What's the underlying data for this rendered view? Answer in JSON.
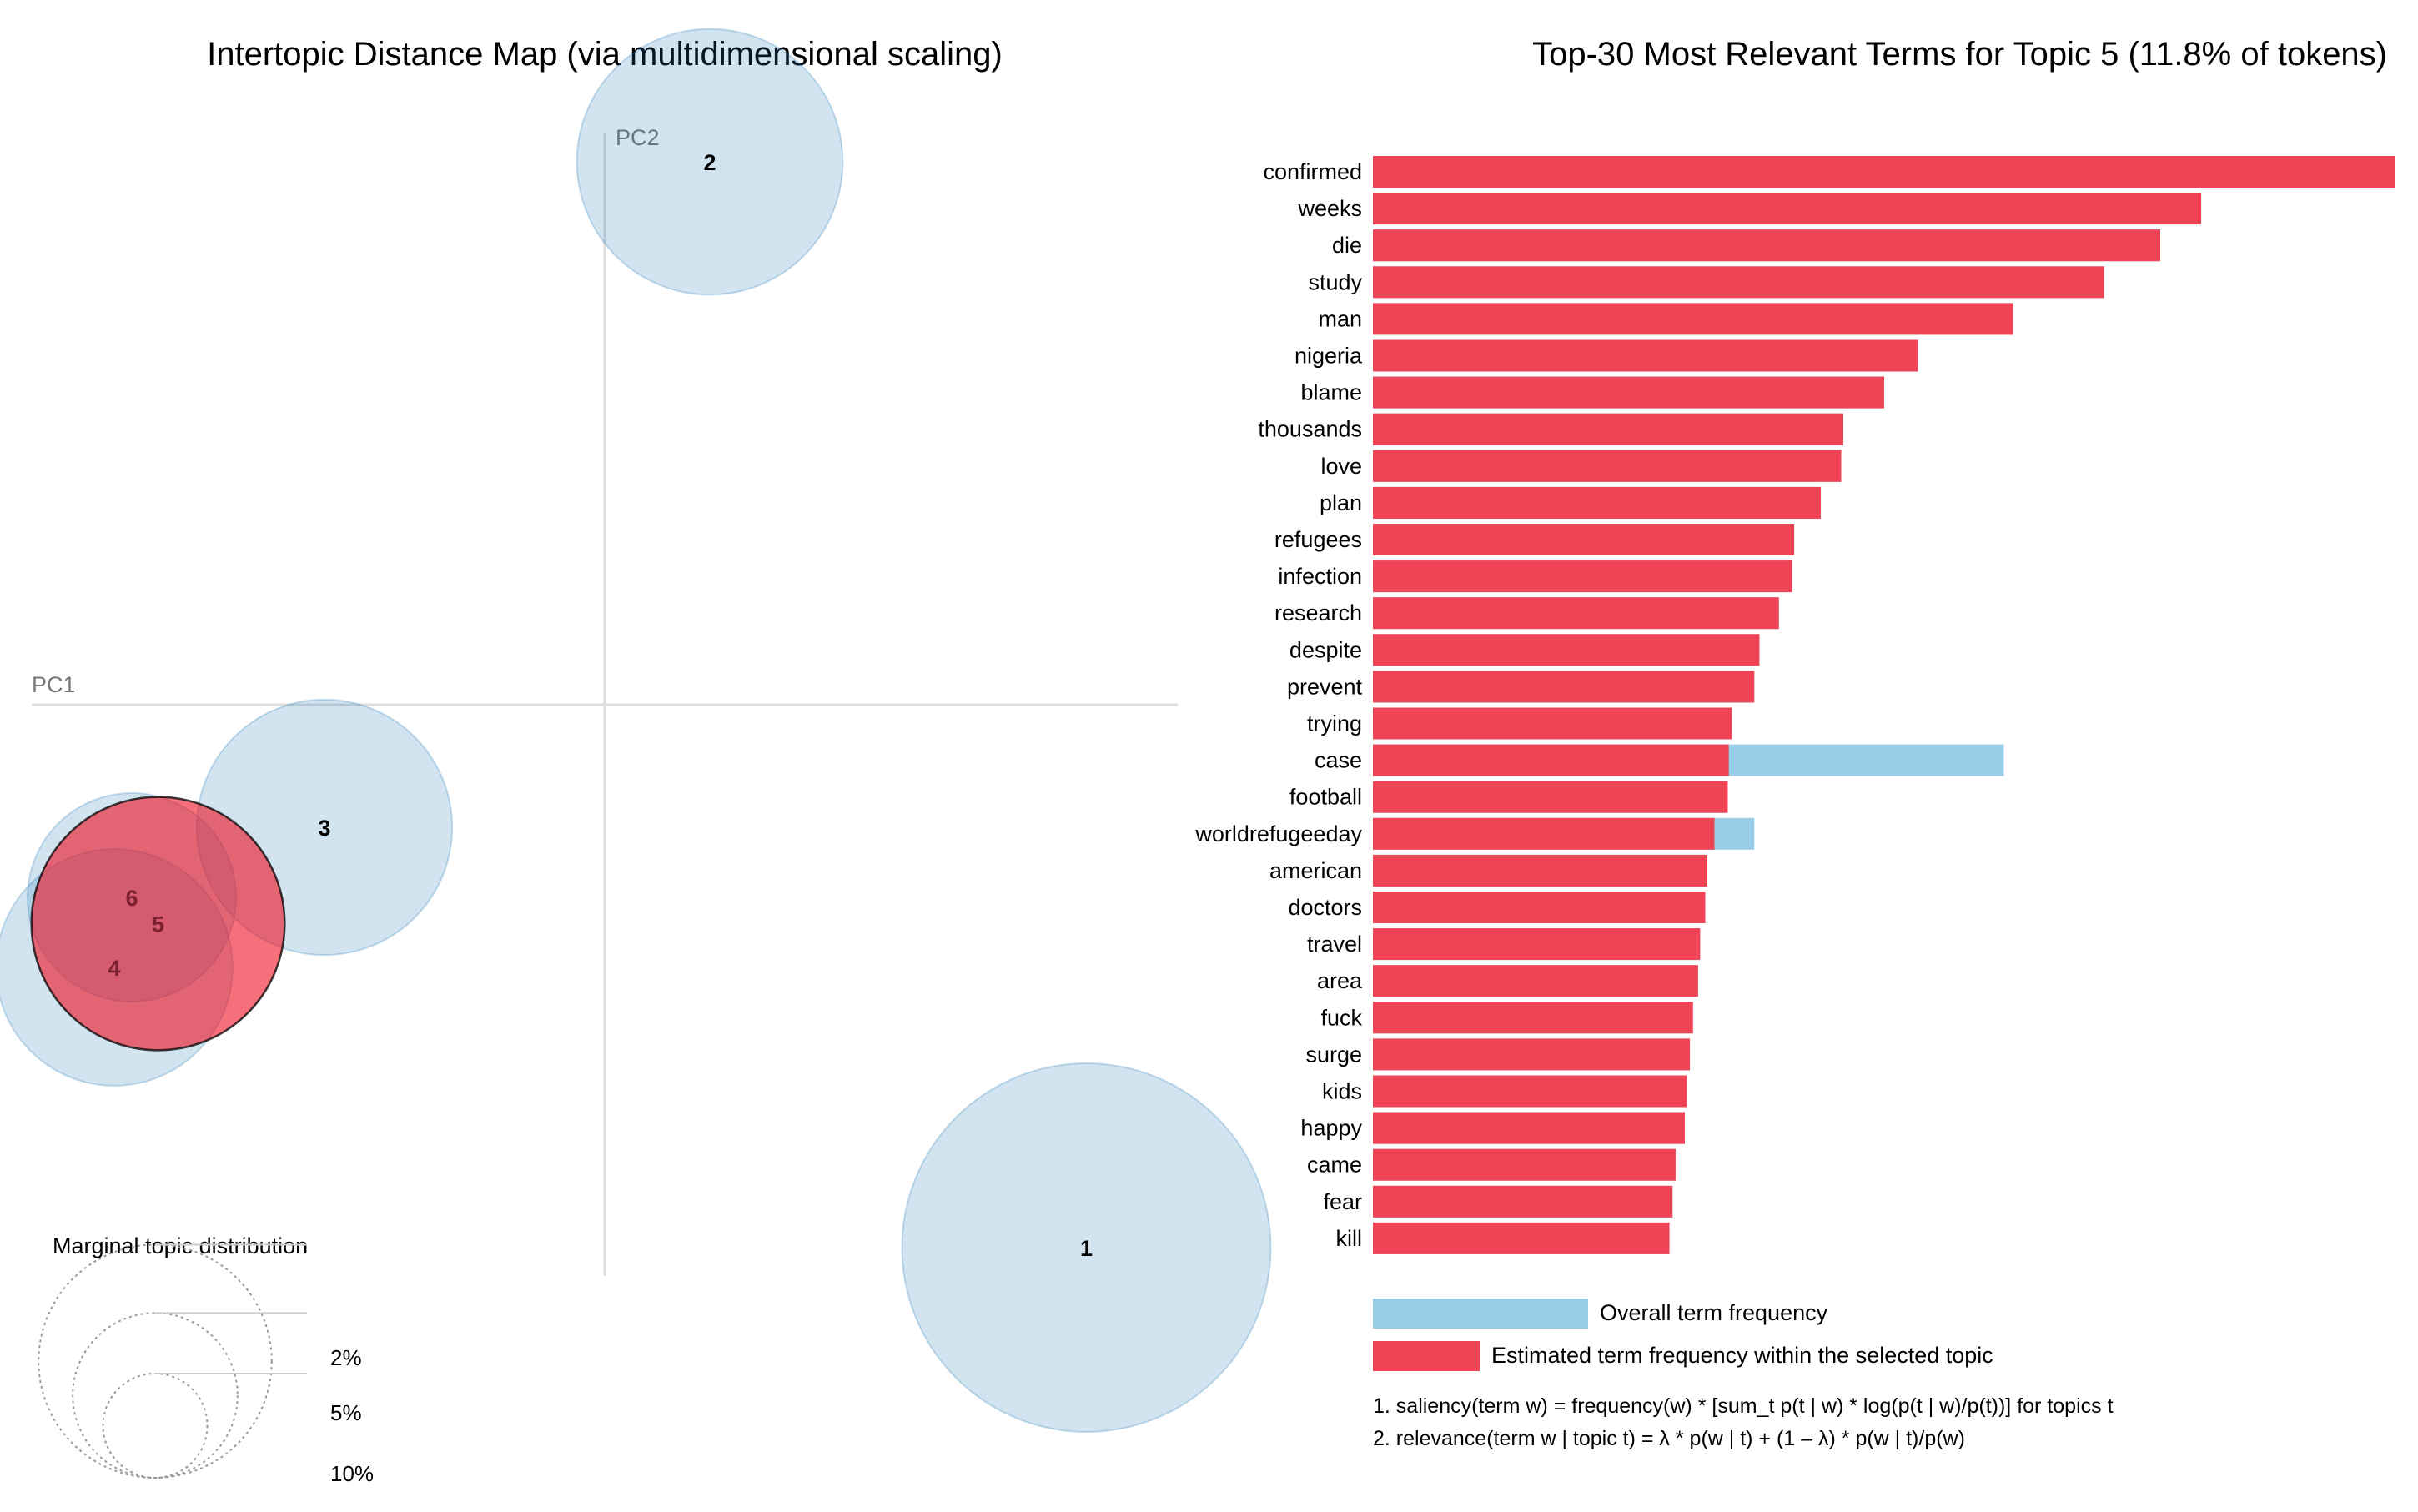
{
  "chart_data": [
    {
      "type": "scatter",
      "title": "Intertopic Distance Map (via multidimensional scaling)",
      "xlabel": "PC1",
      "ylabel": "PC2",
      "selected_topic": 5,
      "topics": [
        {
          "id": 1,
          "pc1": 0.55,
          "pc2": -0.62,
          "freq_pct": 25.0
        },
        {
          "id": 2,
          "pc1": 0.12,
          "pc2": 0.62,
          "freq_pct": 13.0
        },
        {
          "id": 3,
          "pc1": -0.32,
          "pc2": -0.14,
          "freq_pct": 12.0
        },
        {
          "id": 4,
          "pc1": -0.56,
          "pc2": -0.3,
          "freq_pct": 10.3
        },
        {
          "id": 5,
          "pc1": -0.51,
          "pc2": -0.25,
          "freq_pct": 11.8
        },
        {
          "id": 6,
          "pc1": -0.54,
          "pc2": -0.22,
          "freq_pct": 8.0
        }
      ],
      "marginal_legend": {
        "title": "Marginal topic distribution",
        "levels": [
          {
            "pct": 2,
            "label": "2%"
          },
          {
            "pct": 5,
            "label": "5%"
          },
          {
            "pct": 10,
            "label": "10%"
          }
        ]
      }
    },
    {
      "type": "bar",
      "orientation": "horizontal",
      "title": "Top-30 Most Relevant Terms for Topic 5 (11.8% of tokens)",
      "categories": [
        "confirmed",
        "weeks",
        "die",
        "study",
        "man",
        "nigeria",
        "blame",
        "thousands",
        "love",
        "plan",
        "refugees",
        "infection",
        "research",
        "despite",
        "prevent",
        "trying",
        "case",
        "football",
        "worldrefugeeday",
        "american",
        "doctors",
        "travel",
        "area",
        "fuck",
        "surge",
        "kids",
        "happy",
        "came",
        "fear",
        "kill"
      ],
      "series": [
        {
          "name": "Overall term frequency",
          "color": "#99cce6",
          "values": [
            100,
            81,
            77,
            71.5,
            62.6,
            53.3,
            50,
            46,
            45.8,
            43.8,
            41.2,
            41,
            39.7,
            37.8,
            37.3,
            35.1,
            61.7,
            34.7,
            37.3,
            32.7,
            32.5,
            32,
            31.8,
            31.3,
            31,
            30.7,
            30.5,
            29.6,
            29.3,
            29
          ]
        },
        {
          "name": "Estimated term frequency within the selected topic",
          "color": "#ee4455",
          "values": [
            100,
            81,
            77,
            71.5,
            62.6,
            53.3,
            50,
            46,
            45.8,
            43.8,
            41.2,
            41,
            39.7,
            37.8,
            37.3,
            35.1,
            34.8,
            34.7,
            33.4,
            32.7,
            32.5,
            32,
            31.8,
            31.3,
            31,
            30.7,
            30.5,
            29.6,
            29.3,
            29
          ]
        }
      ],
      "legend": [
        "Overall term frequency",
        "Estimated term frequency within the selected topic"
      ],
      "notes": [
        "1. saliency(term w) = frequency(w) * [sum_t p(t | w) * log(p(t | w)/p(t))] for topics t",
        "2. relevance(term w | topic t) = λ * p(w | t) + (1 – λ) * p(w | t)/p(w)"
      ]
    }
  ]
}
